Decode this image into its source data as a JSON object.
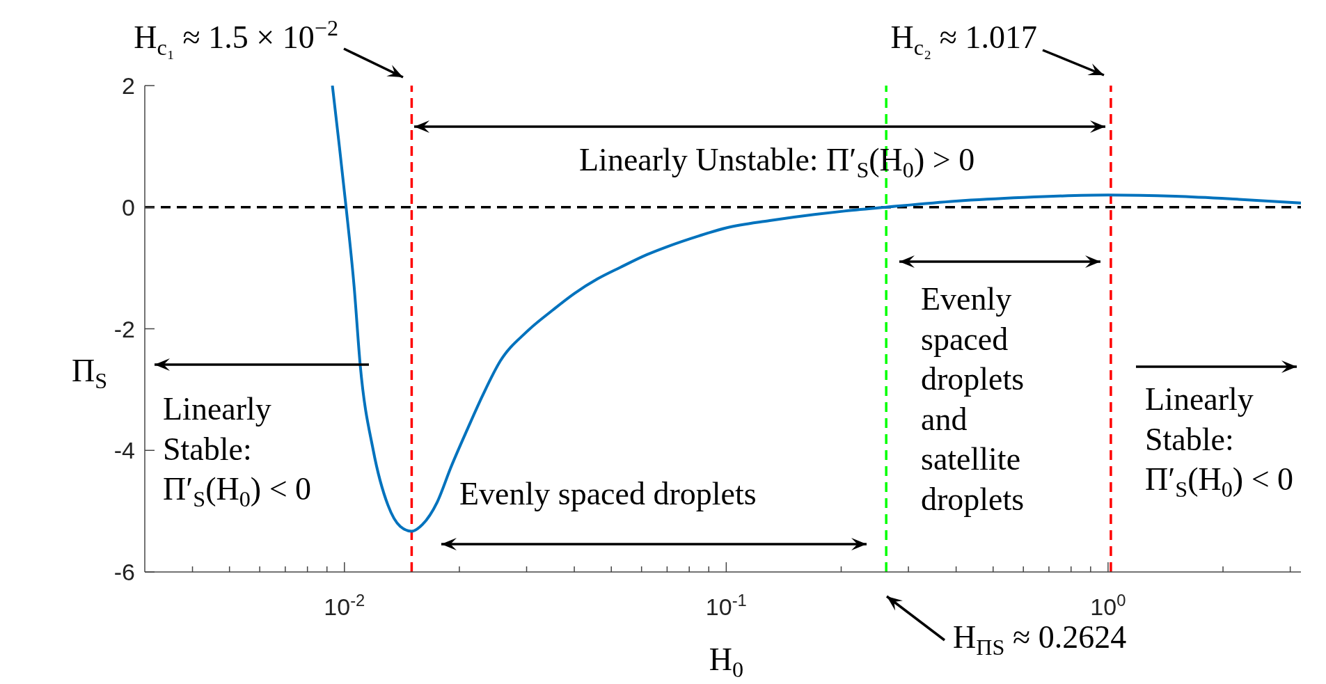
{
  "chart_data": {
    "type": "line",
    "xlabel": "H$_{0}$",
    "ylabel": "Π$_{S}$",
    "log": "x",
    "marker": "none",
    "xlim": [
      0.003,
      3.2
    ],
    "ylim": [
      -6,
      2
    ],
    "xticks": [
      {
        "value": 0.004,
        "label": null
      },
      {
        "value": 0.005,
        "label": null
      },
      {
        "value": 0.006,
        "label": null
      },
      {
        "value": 0.007,
        "label": null
      },
      {
        "value": 0.008,
        "label": null
      },
      {
        "value": 0.009,
        "label": null
      },
      {
        "value": 0.01,
        "label": "10$^{-2}$"
      },
      {
        "value": 0.02,
        "label": null
      },
      {
        "value": 0.03,
        "label": null
      },
      {
        "value": 0.04,
        "label": null
      },
      {
        "value": 0.05,
        "label": null
      },
      {
        "value": 0.06,
        "label": null
      },
      {
        "value": 0.07,
        "label": null
      },
      {
        "value": 0.08,
        "label": null
      },
      {
        "value": 0.09,
        "label": null
      },
      {
        "value": 0.1,
        "label": "10$^{-1}$"
      },
      {
        "value": 0.2,
        "label": null
      },
      {
        "value": 0.3,
        "label": null
      },
      {
        "value": 0.4,
        "label": null
      },
      {
        "value": 0.5,
        "label": null
      },
      {
        "value": 0.6,
        "label": null
      },
      {
        "value": 0.7,
        "label": null
      },
      {
        "value": 0.8,
        "label": null
      },
      {
        "value": 0.9,
        "label": null
      },
      {
        "value": 1,
        "label": "10$^{0}$"
      },
      {
        "value": 2,
        "label": null
      },
      {
        "value": 3,
        "label": null
      }
    ],
    "yticks": [
      -6,
      -4,
      -2,
      0,
      2
    ],
    "series": [
      {
        "color": "#0072bd",
        "x": [
          0.0093,
          0.0097,
          0.0101,
          0.0106,
          0.011,
          0.0119,
          0.013,
          0.014,
          0.015,
          0.016,
          0.0175,
          0.019,
          0.021,
          0.023,
          0.0256,
          0.03,
          0.035,
          0.04,
          0.046,
          0.0528,
          0.062,
          0.07,
          0.085,
          0.1,
          0.13,
          0.17,
          0.2,
          0.2624,
          0.4,
          0.6,
          1.0,
          1.5,
          2.2,
          3.2
        ],
        "values": [
          2,
          1,
          0,
          -1.3,
          -2.6,
          -4,
          -4.9,
          -5.25,
          -5.33,
          -5.22,
          -4.85,
          -4.28,
          -3.65,
          -3.1,
          -2.53,
          -2.05,
          -1.7,
          -1.42,
          -1.18,
          -0.99,
          -0.78,
          -0.65,
          -0.47,
          -0.34,
          -0.22,
          -0.12,
          -0.07,
          0,
          0.1,
          0.16,
          0.2,
          0.18,
          0.13,
          0.07
        ]
      }
    ],
    "ref_lines": [
      {
        "axis": "y",
        "value": 0,
        "label": null,
        "color": "#000000",
        "line_style": "dashed"
      },
      {
        "axis": "x",
        "value": 0.015,
        "label": "H$_{c₁}$ ≈ 1.5 × 10$^{−2}$",
        "color": "#ff0000",
        "line_style": "dashed"
      },
      {
        "axis": "x",
        "value": 0.2624,
        "label": "H$_{ΠS}$ ≈ 0.2624",
        "color": "#00ff00",
        "line_style": "dashed"
      },
      {
        "axis": "x",
        "value": 1.017,
        "label": "H$_{c₂}$ ≈ 1.017",
        "color": "#ff0000",
        "line_style": "dashed"
      }
    ],
    "annotations": [
      "Linearly Unstable: Π′$_{S}$(H$_{0}$) > 0",
      "Linearly Stable: Π′$_{S}$(H$_{0}$) < 0",
      "Evenly spaced droplets",
      "Evenly spaced droplets and satellite droplets",
      "Linearly Stable: Π′$_{S}$(H$_{0}$) < 0"
    ]
  }
}
